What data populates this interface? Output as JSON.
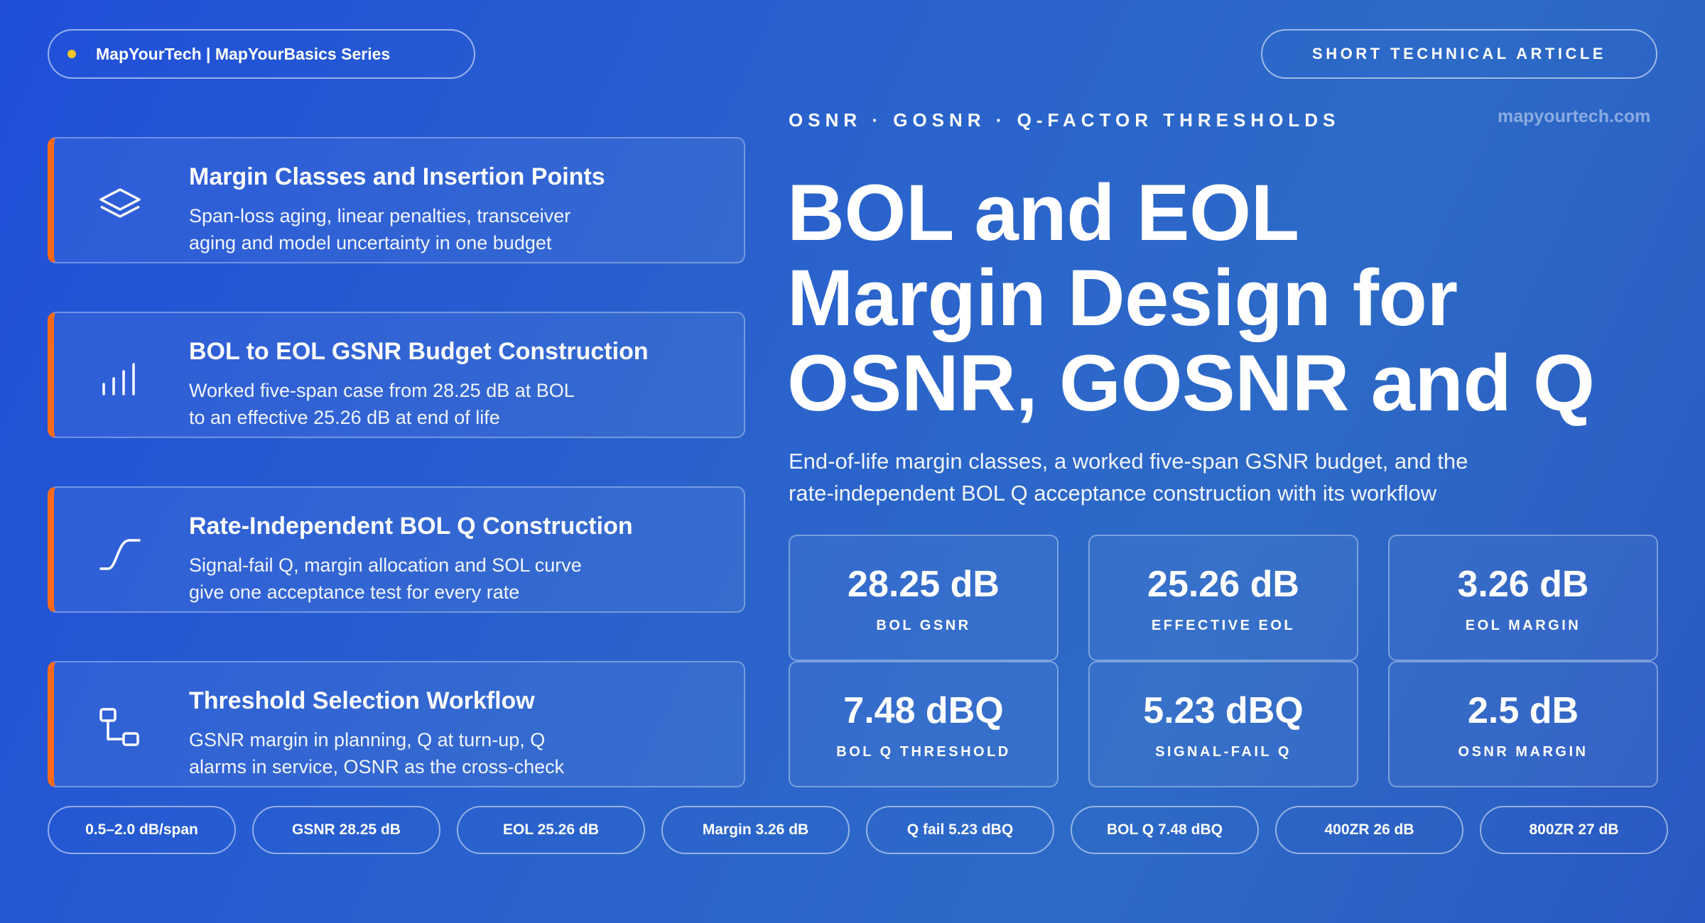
{
  "header": {
    "brand": "MapYourTech | MapYourBasics Series",
    "article_type": "SHORT TECHNICAL ARTICLE",
    "eyebrow": "OSNR · GOSNR · Q-FACTOR THRESHOLDS",
    "site": "mapyourtech.com"
  },
  "hero": {
    "title_lines": [
      "BOL and EOL",
      "Margin Design for",
      "OSNR, GOSNR and Q"
    ],
    "subtitle_lines": [
      "End-of-life margin classes, a worked five-span GSNR budget, and the",
      "rate-independent BOL Q acceptance construction with its workflow"
    ]
  },
  "cards": [
    {
      "icon": "layers-icon",
      "title": "Margin Classes and Insertion Points",
      "desc_lines": [
        "Span-loss aging, linear penalties, transceiver",
        "aging and model uncertainty in one budget"
      ]
    },
    {
      "icon": "bar-chart-icon",
      "title": "BOL to EOL GSNR Budget Construction",
      "desc_lines": [
        "Worked five-span case from 28.25 dB at BOL",
        "to an effective 25.26 dB at end of life"
      ]
    },
    {
      "icon": "curve-icon",
      "title": "Rate-Independent BOL Q Construction",
      "desc_lines": [
        "Signal-fail Q, margin allocation and SOL curve",
        "give one acceptance test for every rate"
      ]
    },
    {
      "icon": "workflow-icon",
      "title": "Threshold Selection Workflow",
      "desc_lines": [
        "GSNR margin in planning, Q at turn-up, Q",
        "alarms in service, OSNR as the cross-check"
      ]
    }
  ],
  "stats": [
    {
      "value": "28.25 dB",
      "label": "BOL GSNR"
    },
    {
      "value": "25.26 dB",
      "label": "EFFECTIVE EOL"
    },
    {
      "value": "3.26 dB",
      "label": "EOL MARGIN"
    },
    {
      "value": "7.48 dBQ",
      "label": "BOL Q THRESHOLD"
    },
    {
      "value": "5.23 dBQ",
      "label": "SIGNAL-FAIL Q"
    },
    {
      "value": "2.5 dB",
      "label": "OSNR MARGIN"
    }
  ],
  "chips": [
    "0.5–2.0 dB/span",
    "GSNR 28.25 dB",
    "EOL 25.26 dB",
    "Margin 3.26 dB",
    "Q fail 5.23 dBQ",
    "BOL Q 7.48 dBQ",
    "400ZR 26 dB",
    "800ZR 27 dB"
  ],
  "colors": {
    "accent": "#ff6a1a",
    "brand_dot": "#f5c52b",
    "background_start": "#1f4fd9",
    "background_end": "#2a58c2"
  }
}
